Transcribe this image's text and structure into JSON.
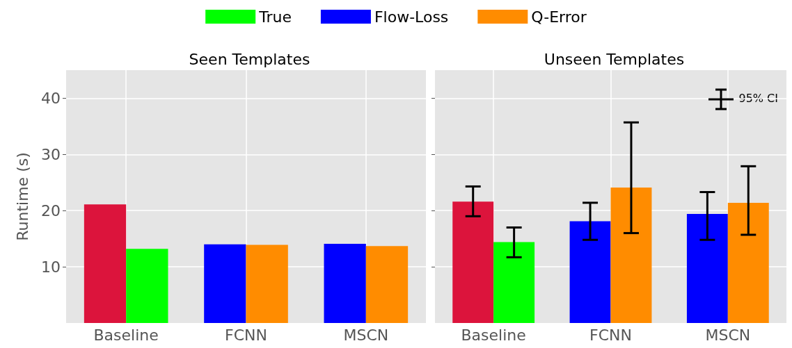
{
  "chart_data": [
    {
      "type": "bar",
      "title": "Seen Templates",
      "ylabel": "Runtime (s)",
      "categories": [
        "Baseline",
        "FCNN",
        "MSCN"
      ],
      "ylim": [
        0,
        45
      ],
      "yticks": [
        10,
        20,
        30,
        40
      ],
      "grid": true,
      "legend": "top",
      "series": [
        {
          "color": "#dc143c",
          "values": [
            21.1,
            null,
            null
          ]
        },
        {
          "name": "True",
          "color": "#00ff00",
          "values": [
            13.2,
            null,
            null
          ]
        },
        {
          "name": "Flow-Loss",
          "color": "#0000ff",
          "values": [
            null,
            14.0,
            14.1
          ]
        },
        {
          "name": "Q-Error",
          "color": "#ff8c00",
          "values": [
            null,
            13.9,
            13.7
          ]
        }
      ]
    },
    {
      "type": "bar",
      "title": "Unseen Templates",
      "categories": [
        "Baseline",
        "FCNN",
        "MSCN"
      ],
      "ylim": [
        0,
        45
      ],
      "yticks": [
        10,
        20,
        30,
        40
      ],
      "grid": true,
      "tick_labels": "x",
      "annotations": [
        "95% CI"
      ],
      "series": [
        {
          "color": "#dc143c",
          "values": [
            21.6,
            null,
            null
          ],
          "errors": [
            [
              19.0,
              24.3
            ],
            null,
            null
          ]
        },
        {
          "name": "True",
          "color": "#00ff00",
          "values": [
            14.4,
            null,
            null
          ],
          "errors": [
            [
              11.7,
              17.0
            ],
            null,
            null
          ]
        },
        {
          "name": "Flow-Loss",
          "color": "#0000ff",
          "values": [
            null,
            18.1,
            19.4
          ],
          "errors": [
            null,
            [
              14.8,
              21.4
            ],
            [
              14.8,
              23.3
            ]
          ]
        },
        {
          "name": "Q-Error",
          "color": "#ff8c00",
          "values": [
            null,
            24.1,
            21.4
          ],
          "errors": [
            null,
            [
              16.0,
              35.7
            ],
            [
              15.7,
              27.9
            ]
          ]
        }
      ]
    }
  ]
}
